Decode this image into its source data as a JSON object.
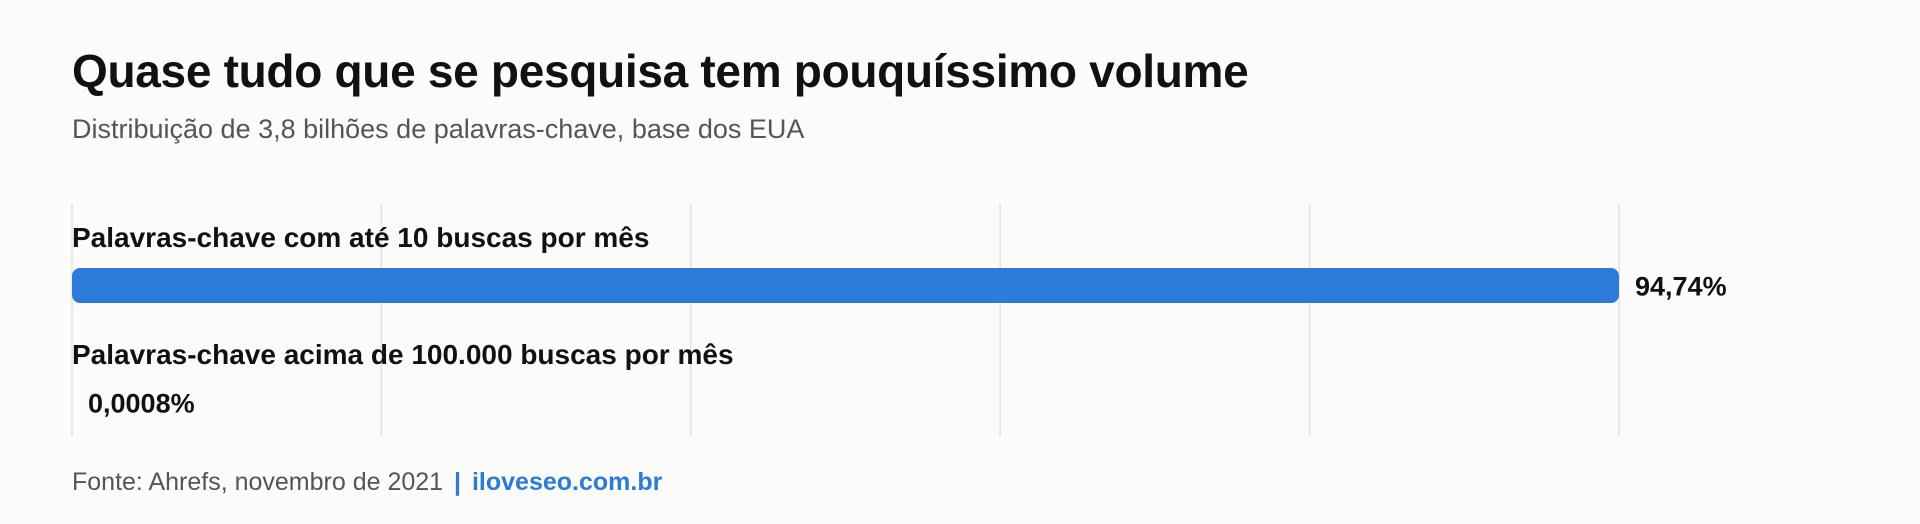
{
  "title": "Quase tudo que se pesquisa tem pouquíssimo volume",
  "subtitle": "Distribuição de 3,8 bilhões de palavras-chave, base dos EUA",
  "footer": {
    "source": "Fonte: Ahrefs, novembro de 2021",
    "separator": "|",
    "link": "iloveseo.com.br"
  },
  "colors": {
    "bar": "#2c7bd9",
    "grid": "#e2e2e2",
    "link": "#2c7bd9"
  },
  "chart_data": {
    "type": "bar",
    "orientation": "horizontal",
    "title": "Quase tudo que se pesquisa tem pouquíssimo volume",
    "subtitle": "Distribuição de 3,8 bilhões de palavras-chave, base dos EUA",
    "categories": [
      "Palavras-chave com até 10 buscas por mês",
      "Palavras-chave acima de 100.000 buscas por mês"
    ],
    "values": [
      94.74,
      0.0008
    ],
    "value_labels": [
      "94,74%",
      "0,0008%"
    ],
    "unit": "%",
    "xlim": [
      0,
      94.74
    ],
    "grid": true,
    "grid_lines": 6
  }
}
